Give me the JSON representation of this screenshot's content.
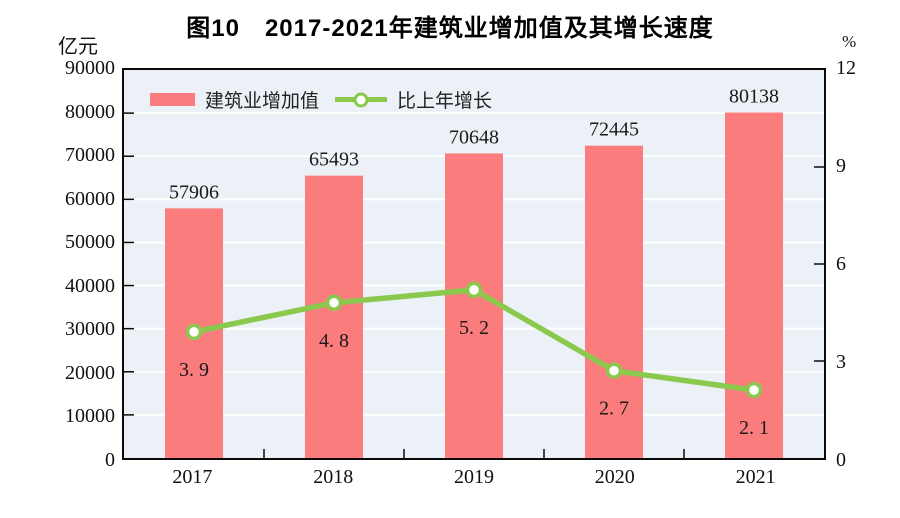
{
  "title": "图10　2017-2021年建筑业增加值及其增长速度",
  "left_axis": {
    "unit": "亿元",
    "ticks": [
      "90000",
      "80000",
      "70000",
      "60000",
      "50000",
      "40000",
      "30000",
      "20000",
      "10000",
      "0"
    ],
    "min": 0,
    "max": 90000,
    "step": 10000
  },
  "right_axis": {
    "unit": "%",
    "ticks": [
      "12",
      "9",
      "6",
      "3",
      "0"
    ],
    "min": 0,
    "max": 12,
    "step": 3
  },
  "legend": {
    "items": [
      {
        "label": "建筑业增加值",
        "marker": "bar-swatch"
      },
      {
        "label": "比上年增长",
        "marker": "line-with-dot"
      }
    ],
    "position": "top-left-inside"
  },
  "chart_data": {
    "type": "bar+line",
    "categories": [
      "2017",
      "2018",
      "2019",
      "2020",
      "2021"
    ],
    "series": [
      {
        "name": "建筑业增加值",
        "type": "bar",
        "axis": "left",
        "values": [
          57906,
          65493,
          70648,
          72445,
          80138
        ],
        "labels": [
          "57906",
          "65493",
          "70648",
          "72445",
          "80138"
        ]
      },
      {
        "name": "比上年增长",
        "type": "line",
        "axis": "right",
        "values": [
          3.9,
          4.8,
          5.2,
          2.7,
          2.1
        ],
        "labels": [
          "3. 9",
          "4. 8",
          "5. 2",
          "2. 7",
          "2. 1"
        ]
      }
    ],
    "left_ylim": [
      0,
      90000
    ],
    "right_ylim": [
      0,
      12
    ],
    "grid": true,
    "legend_position": "top-left-inside"
  },
  "colors": {
    "bar": "#fa7c7c",
    "line": "#8bc94e",
    "marker_fill": "#ffffff",
    "plot_background": "#ebf1f6",
    "gridline": "#ffffff",
    "axis": "#0a0a0a",
    "text": "#1a1a1a"
  }
}
